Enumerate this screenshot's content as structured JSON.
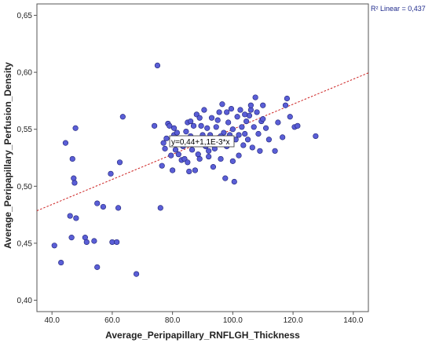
{
  "chart_data": {
    "type": "scatter",
    "xlabel": "Average_Peripapillary_RNFLGH_Thickness",
    "ylabel": "Average_Peripapillary_Perfusion_Density",
    "xlim": [
      35,
      145
    ],
    "ylim": [
      0.39,
      0.66
    ],
    "x_ticks": [
      "40.0",
      "60.0",
      "80.0",
      "100.0",
      "120.0",
      "140.0"
    ],
    "y_ticks": [
      "0,40",
      "0,45",
      "0,50",
      "0,55",
      "0,60",
      "0,65"
    ],
    "grid": false,
    "point_color": "#5a5ed6",
    "line_color": "#cc2020",
    "fit_line": {
      "intercept": 0.44,
      "slope": 0.0011
    },
    "r2_label": "R² Linear = 0,437",
    "equation_label": "y=0,44+1,1E-3*x",
    "points": [
      [
        40.8,
        0.448
      ],
      [
        43,
        0.433
      ],
      [
        44.5,
        0.538
      ],
      [
        46,
        0.474
      ],
      [
        46.5,
        0.455
      ],
      [
        46.8,
        0.524
      ],
      [
        47.2,
        0.507
      ],
      [
        47.5,
        0.503
      ],
      [
        47.8,
        0.551
      ],
      [
        48,
        0.472
      ],
      [
        51,
        0.455
      ],
      [
        51.5,
        0.451
      ],
      [
        54,
        0.452
      ],
      [
        55,
        0.429
      ],
      [
        55,
        0.485
      ],
      [
        57,
        0.482
      ],
      [
        59.5,
        0.511
      ],
      [
        60,
        0.451
      ],
      [
        61.5,
        0.451
      ],
      [
        62,
        0.481
      ],
      [
        62.5,
        0.521
      ],
      [
        63.5,
        0.561
      ],
      [
        68,
        0.423
      ],
      [
        74,
        0.553
      ],
      [
        75,
        0.606
      ],
      [
        76,
        0.481
      ],
      [
        76.5,
        0.518
      ],
      [
        77,
        0.538
      ],
      [
        77.5,
        0.533
      ],
      [
        78,
        0.542
      ],
      [
        78.5,
        0.555
      ],
      [
        79,
        0.553
      ],
      [
        79.5,
        0.527
      ],
      [
        80,
        0.514
      ],
      [
        80.5,
        0.545
      ],
      [
        81,
        0.532
      ],
      [
        81.5,
        0.547
      ],
      [
        82,
        0.528
      ],
      [
        82.5,
        0.538
      ],
      [
        83,
        0.523
      ],
      [
        83.5,
        0.535
      ],
      [
        84,
        0.524
      ],
      [
        84.5,
        0.548
      ],
      [
        85,
        0.556
      ],
      [
        85,
        0.521
      ],
      [
        85.5,
        0.513
      ],
      [
        86,
        0.557
      ],
      [
        86.5,
        0.532
      ],
      [
        87,
        0.553
      ],
      [
        87.5,
        0.514
      ],
      [
        88,
        0.563
      ],
      [
        88.5,
        0.528
      ],
      [
        89,
        0.524
      ],
      [
        89.5,
        0.553
      ],
      [
        90,
        0.545
      ],
      [
        90.5,
        0.567
      ],
      [
        91,
        0.535
      ],
      [
        91.5,
        0.551
      ],
      [
        92,
        0.526
      ],
      [
        92.5,
        0.545
      ],
      [
        93,
        0.56
      ],
      [
        93.5,
        0.517
      ],
      [
        94,
        0.533
      ],
      [
        94.5,
        0.552
      ],
      [
        95,
        0.541
      ],
      [
        95.5,
        0.565
      ],
      [
        96,
        0.524
      ],
      [
        96.5,
        0.572
      ],
      [
        97,
        0.547
      ],
      [
        97.5,
        0.507
      ],
      [
        98,
        0.535
      ],
      [
        98.5,
        0.556
      ],
      [
        99,
        0.545
      ],
      [
        99.5,
        0.568
      ],
      [
        100,
        0.522
      ],
      [
        100.5,
        0.504
      ],
      [
        101,
        0.541
      ],
      [
        101.5,
        0.561
      ],
      [
        102,
        0.527
      ],
      [
        102.5,
        0.567
      ],
      [
        103,
        0.552
      ],
      [
        103.5,
        0.536
      ],
      [
        104,
        0.546
      ],
      [
        104.5,
        0.557
      ],
      [
        105,
        0.541
      ],
      [
        105.5,
        0.562
      ],
      [
        106,
        0.567
      ],
      [
        106.5,
        0.534
      ],
      [
        107,
        0.552
      ],
      [
        107.5,
        0.578
      ],
      [
        108,
        0.565
      ],
      [
        108.5,
        0.546
      ],
      [
        109,
        0.531
      ],
      [
        109.5,
        0.557
      ],
      [
        110,
        0.571
      ],
      [
        111,
        0.551
      ],
      [
        112,
        0.541
      ],
      [
        114,
        0.531
      ],
      [
        115,
        0.556
      ],
      [
        116.5,
        0.543
      ],
      [
        117.5,
        0.571
      ],
      [
        118,
        0.577
      ],
      [
        119,
        0.561
      ],
      [
        120.5,
        0.552
      ],
      [
        121.5,
        0.553
      ],
      [
        127.5,
        0.544
      ],
      [
        80.5,
        0.551
      ],
      [
        83,
        0.541
      ],
      [
        86,
        0.544
      ],
      [
        89,
        0.56
      ],
      [
        92,
        0.531
      ],
      [
        95,
        0.558
      ],
      [
        98,
        0.565
      ],
      [
        102,
        0.545
      ],
      [
        104,
        0.563
      ],
      [
        106,
        0.571
      ],
      [
        110,
        0.559
      ],
      [
        88,
        0.541
      ],
      [
        96,
        0.544
      ],
      [
        100,
        0.55
      ]
    ]
  }
}
